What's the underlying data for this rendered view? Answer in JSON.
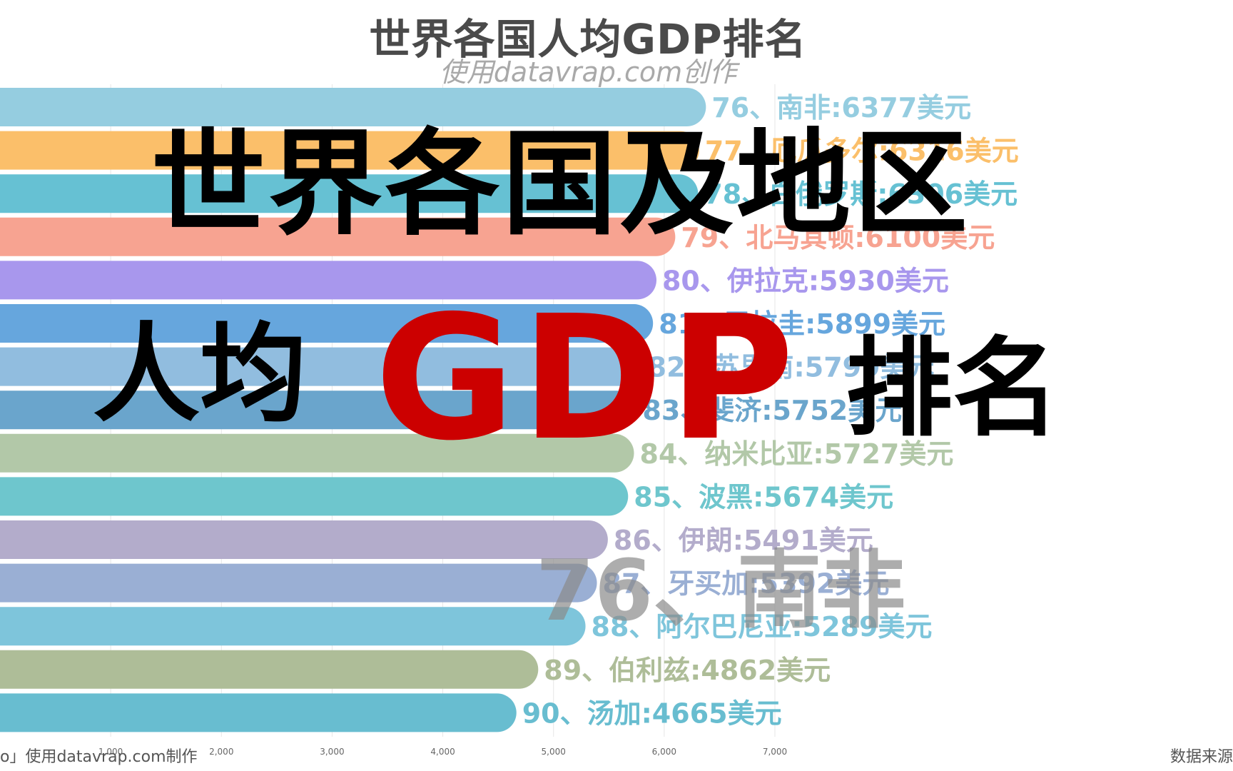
{
  "chart_data": {
    "type": "bar",
    "orientation": "horizontal",
    "title": "世界各国人均GDP排名",
    "subtitle": "使用datavrap.com创作",
    "xlim": [
      0,
      7000
    ],
    "x_ticks": [
      "1,000",
      "2,000",
      "3,000",
      "4,000",
      "5,000",
      "6,000",
      "7,000"
    ],
    "x_tick_values": [
      1000,
      2000,
      3000,
      4000,
      5000,
      6000,
      7000
    ],
    "grid": true,
    "bars": [
      {
        "label": "76、南非:6377美元",
        "value": 6377,
        "color": "#95cde0"
      },
      {
        "label": "77、厄瓜多尔:6316美元",
        "value": 6316,
        "color": "#fbbf6a"
      },
      {
        "label": "78、白俄罗斯:6306美元",
        "value": 6306,
        "color": "#66c1d3"
      },
      {
        "label": "79、北马其顿:6100美元",
        "value": 6100,
        "color": "#f7a391"
      },
      {
        "label": "80、伊拉克:5930美元",
        "value": 5930,
        "color": "#a897ed"
      },
      {
        "label": "81、巴拉圭:5899美元",
        "value": 5899,
        "color": "#66a6dd"
      },
      {
        "label": "82、苏里南:5799美元",
        "value": 5799,
        "color": "#91bddf"
      },
      {
        "label": "83、斐济:5752美元",
        "value": 5752,
        "color": "#6aa5cc"
      },
      {
        "label": "84、纳米比亚:5727美元",
        "value": 5727,
        "color": "#b2c8a8"
      },
      {
        "label": "85、波黑:5674美元",
        "value": 5674,
        "color": "#6ec6cd"
      },
      {
        "label": "86、伊朗:5491美元",
        "value": 5491,
        "color": "#b3accb"
      },
      {
        "label": "87、牙买加:5392美元",
        "value": 5392,
        "color": "#9aafd4"
      },
      {
        "label": "88、阿尔巴尼亚:5289美元",
        "value": 5289,
        "color": "#7ec5db"
      },
      {
        "label": "89、伯利兹:4862美元",
        "value": 4862,
        "color": "#aebd98"
      },
      {
        "label": "90、汤加:4665美元",
        "value": 4665,
        "color": "#68bdd0"
      }
    ],
    "current_label": "76、南非"
  },
  "overlay": {
    "line1": "世界各国及地区",
    "renjun": "人均",
    "gdp": "GDP",
    "paiming": "排名"
  },
  "footer": {
    "left": "o」使用datavrap.com制作",
    "right": "数据来源"
  }
}
